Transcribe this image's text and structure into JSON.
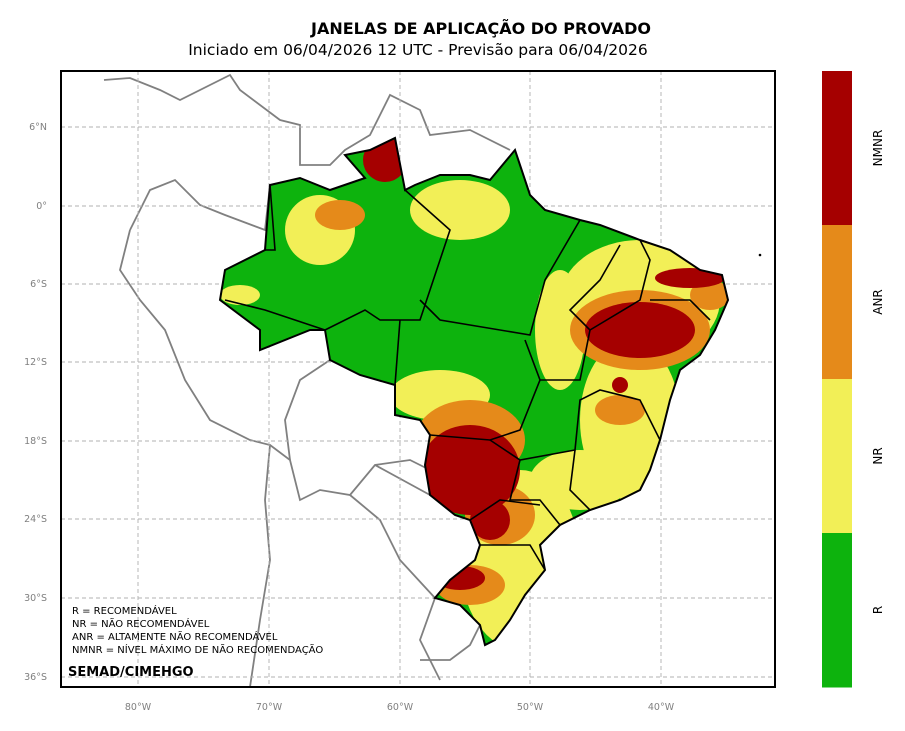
{
  "title": "JANELAS DE APLICAÇÃO DO PROVADO",
  "subtitle": "Iniciado em 06/04/2026 12 UTC - Previsão para 06/04/2026",
  "map": {
    "lon_ticks": [
      "80°W",
      "70°W",
      "60°W",
      "50°W",
      "40°W"
    ],
    "lat_ticks": [
      "6°N",
      "0°",
      "6°S",
      "12°S",
      "18°S",
      "24°S",
      "30°S",
      "36°S"
    ],
    "legend_lines": [
      "R = RECOMENDÁVEL",
      "NR = NÃO RECOMENDÁVEL",
      "ANR = ALTAMENTE NÃO RECOMENDÁVEL",
      "NMNR = NÍVEL MÁXIMO DE NÃO RECOMENDAÇÃO"
    ],
    "credit": "SEMAD/CIMEHGO"
  },
  "colorbar": {
    "categories": [
      {
        "label": "NMNR",
        "color": "#a50000"
      },
      {
        "label": "ANR",
        "color": "#e58a1a"
      },
      {
        "label": "NR",
        "color": "#f2ef57"
      },
      {
        "label": "R",
        "color": "#0db30d"
      }
    ]
  }
}
